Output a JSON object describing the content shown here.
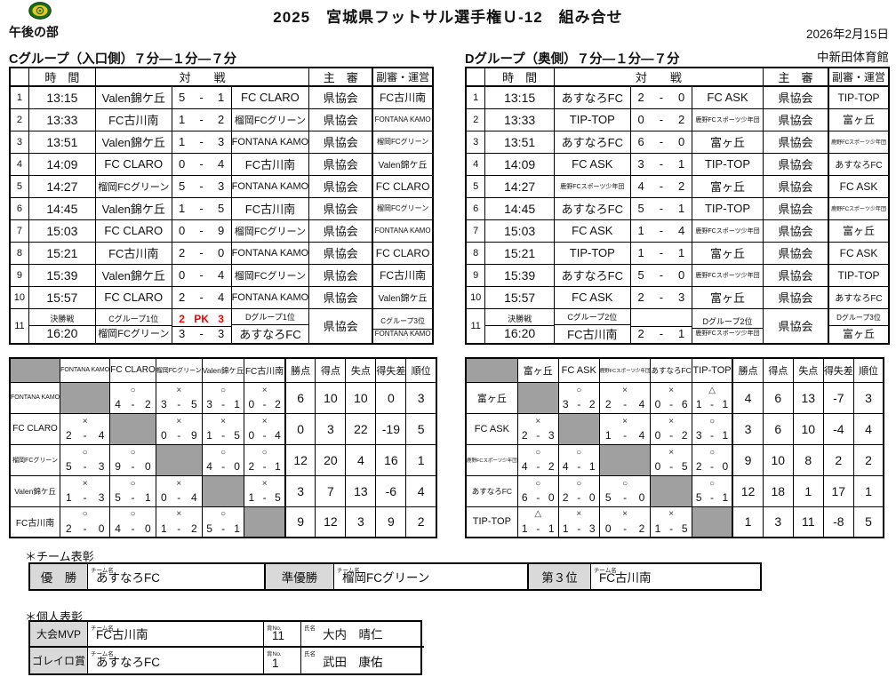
{
  "page": {
    "title": "2025　宮城県フットサル選手権Ｕ-12　組み合せ",
    "session": "午後の部",
    "date": "2026年2月15日",
    "venue": "中新田体育館",
    "logo_icon": "association-logo"
  },
  "colors": {
    "pk_red": "#ff0000",
    "matrix_gray": "#a0a0a0",
    "award_label_gray": "#d9d9d9",
    "logo_green": "#1a6b1a",
    "logo_yellow": "#e9c626"
  },
  "schedule": {
    "col_headers": {
      "time": "時　間",
      "match": "対　　戦",
      "referee": "主　審",
      "assistant": "副審・運営"
    },
    "groups": [
      {
        "id": "c",
        "heading": "Cグループ（入口側）７分―１分―７分",
        "rows": [
          {
            "no": "1",
            "time": "13:15",
            "home": "Valen錦ケ丘",
            "score1": "5",
            "score2": "1",
            "away": "FC CLARO",
            "ref": "県協会",
            "sub": "FC古川南"
          },
          {
            "no": "2",
            "time": "13:33",
            "home": "FC古川南",
            "score1": "1",
            "score2": "2",
            "away": "榴岡FCグリーン",
            "ref": "県協会",
            "sub": "FONTANA KAMO"
          },
          {
            "no": "3",
            "time": "13:51",
            "home": "Valen錦ケ丘",
            "score1": "1",
            "score2": "3",
            "away": "FONTANA KAMO",
            "ref": "県協会",
            "sub": "榴岡FCグリーン"
          },
          {
            "no": "4",
            "time": "14:09",
            "home": "FC CLARO",
            "score1": "0",
            "score2": "4",
            "away": "FC古川南",
            "ref": "県協会",
            "sub": "Valen錦ケ丘"
          },
          {
            "no": "5",
            "time": "14:27",
            "home": "榴岡FCグリーン",
            "score1": "5",
            "score2": "3",
            "away": "FONTANA KAMO",
            "ref": "県協会",
            "sub": "FC CLARO"
          },
          {
            "no": "6",
            "time": "14:45",
            "home": "Valen錦ケ丘",
            "score1": "1",
            "score2": "5",
            "away": "FC古川南",
            "ref": "県協会",
            "sub": "榴岡FCグリーン"
          },
          {
            "no": "7",
            "time": "15:03",
            "home": "FC CLARO",
            "score1": "0",
            "score2": "9",
            "away": "榴岡FCグリーン",
            "ref": "県協会",
            "sub": "FONTANA KAMO"
          },
          {
            "no": "8",
            "time": "15:21",
            "home": "FC古川南",
            "score1": "2",
            "score2": "0",
            "away": "FONTANA KAMO",
            "ref": "県協会",
            "sub": "FC CLARO"
          },
          {
            "no": "9",
            "time": "15:39",
            "home": "Valen錦ケ丘",
            "score1": "0",
            "score2": "4",
            "away": "榴岡FCグリーン",
            "ref": "県協会",
            "sub": "FC古川南"
          },
          {
            "no": "10",
            "time": "15:57",
            "home": "FC CLARO",
            "score1": "2",
            "score2": "4",
            "away": "FONTANA KAMO",
            "ref": "県協会",
            "sub": "Valen錦ケ丘"
          }
        ],
        "final": {
          "no": "11",
          "label": "決勝戦",
          "time": "16:20",
          "home_top": "Cグループ1位",
          "home_bottom": "榴岡FCグリーン",
          "pk_line": {
            "left": "2",
            "mid": "PK",
            "right": "3"
          },
          "score1": "3",
          "score2": "3",
          "away_top": "Dグループ1位",
          "away_bottom": "あすなろFC",
          "ref": "県協会",
          "sub_top": "Cグループ3位",
          "sub_bottom": "FONTANA KAMO"
        }
      },
      {
        "id": "d",
        "heading": "Dグループ（奥側）７分―１分―７分",
        "rows": [
          {
            "no": "1",
            "time": "13:15",
            "home": "あすなろFC",
            "score1": "2",
            "score2": "0",
            "away": "FC ASK",
            "ref": "県協会",
            "sub": "TIP-TOP"
          },
          {
            "no": "2",
            "time": "13:33",
            "home": "TIP-TOP",
            "score1": "0",
            "score2": "2",
            "away": "鹿野FCスポーツ少年団",
            "ref": "県協会",
            "sub": "富ヶ丘"
          },
          {
            "no": "3",
            "time": "13:51",
            "home": "あすなろFC",
            "score1": "6",
            "score2": "0",
            "away": "富ヶ丘",
            "ref": "県協会",
            "sub": "鹿野FCスポーツ少年団"
          },
          {
            "no": "4",
            "time": "14:09",
            "home": "FC ASK",
            "score1": "3",
            "score2": "1",
            "away": "TIP-TOP",
            "ref": "県協会",
            "sub": "あすなろFC"
          },
          {
            "no": "5",
            "time": "14:27",
            "home": "鹿野FCスポーツ少年団",
            "score1": "4",
            "score2": "2",
            "away": "富ヶ丘",
            "ref": "県協会",
            "sub": "FC ASK"
          },
          {
            "no": "6",
            "time": "14:45",
            "home": "あすなろFC",
            "score1": "5",
            "score2": "1",
            "away": "TIP-TOP",
            "ref": "県協会",
            "sub": "鹿野FCスポーツ少年団"
          },
          {
            "no": "7",
            "time": "15:03",
            "home": "FC ASK",
            "score1": "1",
            "score2": "4",
            "away": "鹿野FCスポーツ少年団",
            "ref": "県協会",
            "sub": "富ヶ丘"
          },
          {
            "no": "8",
            "time": "15:21",
            "home": "TIP-TOP",
            "score1": "1",
            "score2": "1",
            "away": "富ヶ丘",
            "ref": "県協会",
            "sub": "FC ASK"
          },
          {
            "no": "9",
            "time": "15:39",
            "home": "あすなろFC",
            "score1": "5",
            "score2": "0",
            "away": "鹿野FCスポーツ少年団",
            "ref": "県協会",
            "sub": "TIP-TOP"
          },
          {
            "no": "10",
            "time": "15:57",
            "home": "FC ASK",
            "score1": "2",
            "score2": "3",
            "away": "富ヶ丘",
            "ref": "県協会",
            "sub": "あすなろFC"
          }
        ],
        "final": {
          "no": "11",
          "label": "決勝戦",
          "time": "16:20",
          "home_top": "Cグループ2位",
          "home_bottom": "FC古川南",
          "pk_line": null,
          "score1": "2",
          "score2": "1",
          "away_top": "Dグループ2位",
          "away_bottom": "鹿野FCスポーツ少年団",
          "ref": "県協会",
          "sub_top": "Dグループ3位",
          "sub_bottom": "富ヶ丘"
        }
      }
    ]
  },
  "standings": [
    {
      "group": "c",
      "teams": [
        "FONTANA KAMO",
        "FC CLARO",
        "榴岡FCグリーン",
        "Valen錦ケ丘",
        "FC古川南"
      ],
      "stat_headers": [
        "勝点",
        "得点",
        "失点",
        "得失差",
        "順位"
      ],
      "rows": [
        {
          "team": "FONTANA KAMO",
          "results": [
            null,
            {
              "mark": "○",
              "left": "4",
              "right": "2"
            },
            {
              "mark": "×",
              "left": "3",
              "right": "5"
            },
            {
              "mark": "○",
              "left": "3",
              "right": "1"
            },
            {
              "mark": "×",
              "left": "0",
              "right": "2"
            }
          ],
          "stats": [
            "6",
            "10",
            "10",
            "0",
            "3"
          ]
        },
        {
          "team": "FC CLARO",
          "results": [
            {
              "mark": "×",
              "left": "2",
              "right": "4"
            },
            null,
            {
              "mark": "×",
              "left": "0",
              "right": "9"
            },
            {
              "mark": "×",
              "left": "1",
              "right": "5"
            },
            {
              "mark": "×",
              "left": "0",
              "right": "4"
            }
          ],
          "stats": [
            "0",
            "3",
            "22",
            "-19",
            "5"
          ]
        },
        {
          "team": "榴岡FCグリーン",
          "results": [
            {
              "mark": "○",
              "left": "5",
              "right": "3"
            },
            {
              "mark": "○",
              "left": "9",
              "right": "0"
            },
            null,
            {
              "mark": "○",
              "left": "4",
              "right": "0"
            },
            {
              "mark": "○",
              "left": "2",
              "right": "1"
            }
          ],
          "stats": [
            "12",
            "20",
            "4",
            "16",
            "1"
          ]
        },
        {
          "team": "Valen錦ケ丘",
          "results": [
            {
              "mark": "×",
              "left": "1",
              "right": "3"
            },
            {
              "mark": "○",
              "left": "5",
              "right": "1"
            },
            {
              "mark": "×",
              "left": "0",
              "right": "4"
            },
            null,
            {
              "mark": "×",
              "left": "1",
              "right": "5"
            }
          ],
          "stats": [
            "3",
            "7",
            "13",
            "-6",
            "4"
          ]
        },
        {
          "team": "FC古川南",
          "results": [
            {
              "mark": "○",
              "left": "2",
              "right": "0"
            },
            {
              "mark": "○",
              "left": "4",
              "right": "0"
            },
            {
              "mark": "×",
              "left": "1",
              "right": "2"
            },
            {
              "mark": "○",
              "left": "5",
              "right": "1"
            },
            null
          ],
          "stats": [
            "9",
            "12",
            "3",
            "9",
            "2"
          ]
        }
      ]
    },
    {
      "group": "d",
      "teams": [
        "富ヶ丘",
        "FC ASK",
        "鹿野FCスポーツ少年団",
        "あすなろFC",
        "TIP-TOP"
      ],
      "stat_headers": [
        "勝点",
        "得点",
        "失点",
        "得失差",
        "順位"
      ],
      "rows": [
        {
          "team": "富ヶ丘",
          "results": [
            null,
            {
              "mark": "○",
              "left": "3",
              "right": "2"
            },
            {
              "mark": "×",
              "left": "2",
              "right": "4"
            },
            {
              "mark": "×",
              "left": "0",
              "right": "6"
            },
            {
              "mark": "△",
              "left": "1",
              "right": "1"
            }
          ],
          "stats": [
            "4",
            "6",
            "13",
            "-7",
            "3"
          ]
        },
        {
          "team": "FC ASK",
          "results": [
            {
              "mark": "×",
              "left": "2",
              "right": "3"
            },
            null,
            {
              "mark": "×",
              "left": "1",
              "right": "4"
            },
            {
              "mark": "×",
              "left": "0",
              "right": "2"
            },
            {
              "mark": "○",
              "left": "3",
              "right": "1"
            }
          ],
          "stats": [
            "3",
            "6",
            "10",
            "-4",
            "4"
          ]
        },
        {
          "team": "鹿野FCスポーツ少年団",
          "results": [
            {
              "mark": "○",
              "left": "4",
              "right": "2"
            },
            {
              "mark": "○",
              "left": "4",
              "right": "1"
            },
            null,
            {
              "mark": "×",
              "left": "0",
              "right": "5"
            },
            {
              "mark": "○",
              "left": "2",
              "right": "0"
            }
          ],
          "stats": [
            "9",
            "10",
            "8",
            "2",
            "2"
          ]
        },
        {
          "team": "あすなろFC",
          "results": [
            {
              "mark": "○",
              "left": "6",
              "right": "0"
            },
            {
              "mark": "○",
              "left": "2",
              "right": "0"
            },
            {
              "mark": "○",
              "left": "5",
              "right": "0"
            },
            null,
            {
              "mark": "○",
              "left": "5",
              "right": "1"
            }
          ],
          "stats": [
            "12",
            "18",
            "1",
            "17",
            "1"
          ]
        },
        {
          "team": "TIP-TOP",
          "results": [
            {
              "mark": "△",
              "left": "1",
              "right": "1"
            },
            {
              "mark": "×",
              "left": "1",
              "right": "3"
            },
            {
              "mark": "×",
              "left": "0",
              "right": "2"
            },
            {
              "mark": "×",
              "left": "1",
              "right": "5"
            },
            null
          ],
          "stats": [
            "1",
            "3",
            "11",
            "-8",
            "5"
          ]
        }
      ]
    }
  ],
  "awards": {
    "team_section_label": "＊チーム表彰",
    "individual_section_label": "＊個人表彰",
    "field_team_label": "チーム名",
    "field_number_label": "背No.",
    "field_name_label": "氏名",
    "team": [
      {
        "title": "優　勝",
        "team": "あすなろFC"
      },
      {
        "title": "準優勝",
        "team": "榴岡FCグリーン"
      },
      {
        "title": "第３位",
        "team": "FC古川南"
      }
    ],
    "individual": [
      {
        "title": "大会MVP",
        "team": "FC古川南",
        "number": "11",
        "name": "大内　晴仁"
      },
      {
        "title": "ゴレイロ賞",
        "team": "あすなろFC",
        "number": "1",
        "name": "武田　康佑"
      }
    ]
  }
}
